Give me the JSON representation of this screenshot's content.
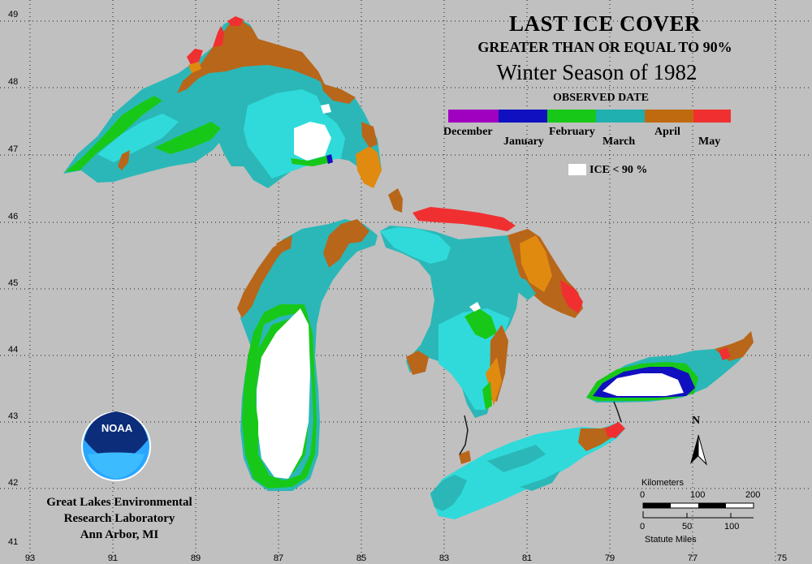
{
  "title": {
    "line1": "LAST ICE COVER",
    "line2": "GREATER THAN OR EQUAL TO 90%",
    "line3": "Winter Season of 1982",
    "legend_title": "OBSERVED DATE"
  },
  "legend": {
    "months": [
      "December",
      "January",
      "February",
      "March",
      "April",
      "May"
    ],
    "ice_label": "ICE < 90 %",
    "colors": {
      "december": "#a000c0",
      "january": "#1010c0",
      "february": "#18c818",
      "march": "#20b0b0",
      "march_late": "#20e0e0",
      "april": "#c06a10",
      "april_late": "#e08a10",
      "may": "#f03030",
      "ice_lt_90": "#ffffff"
    }
  },
  "axes": {
    "latitudes": [
      "49",
      "48",
      "47",
      "46",
      "45",
      "44",
      "43",
      "42",
      "41"
    ],
    "longitudes": [
      "93",
      "91",
      "89",
      "87",
      "85",
      "83",
      "81",
      "79",
      "77",
      "75"
    ]
  },
  "credit": {
    "line1": "Great Lakes Environmental",
    "line2": "Research Laboratory",
    "line3": "Ann Arbor, MI"
  },
  "logo_text": "NOAA",
  "north_label": "N",
  "scale": {
    "km_label": "Kilometers",
    "km_ticks": [
      "0",
      "100",
      "200"
    ],
    "mi_ticks": [
      "0",
      "50",
      "100"
    ],
    "mi_label": "Statute Miles"
  }
}
